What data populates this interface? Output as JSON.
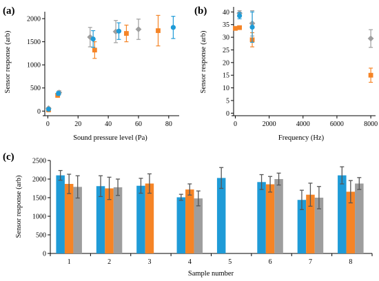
{
  "chart_data": [
    {
      "panel": "(a)",
      "type": "scatter",
      "xlabel": "Sound pressure level (Pa)",
      "ylabel": "Sensor response (arb)",
      "xlim": [
        -2,
        86
      ],
      "ylim": [
        -100,
        2150
      ],
      "xticks": [
        0,
        20,
        40,
        60,
        80
      ],
      "yticks": [
        0,
        500,
        1000,
        1500,
        2000
      ],
      "colors": [
        "#1f9bd7",
        "#f58426",
        "#9e9e9e"
      ],
      "markers": [
        "circle",
        "square",
        "diamond"
      ],
      "series": [
        {
          "points": [
            {
              "x": 0.5,
              "y": 40,
              "err": 20
            },
            {
              "x": 7,
              "y": 380,
              "err": 40
            },
            {
              "x": 30,
              "y": 1560,
              "err": 180
            },
            {
              "x": 47,
              "y": 1730,
              "err": 180
            },
            {
              "x": 83,
              "y": 1810,
              "err": 240
            }
          ]
        },
        {
          "points": [
            {
              "x": 0.5,
              "y": 25,
              "err": 15
            },
            {
              "x": 6.5,
              "y": 340,
              "err": 40
            },
            {
              "x": 31,
              "y": 1320,
              "err": 180
            },
            {
              "x": 52,
              "y": 1680,
              "err": 180
            },
            {
              "x": 73,
              "y": 1740,
              "err": 330
            }
          ]
        },
        {
          "points": [
            {
              "x": 0.5,
              "y": 60,
              "err": 20
            },
            {
              "x": 7.5,
              "y": 400,
              "err": 40
            },
            {
              "x": 28,
              "y": 1600,
              "err": 210
            },
            {
              "x": 45,
              "y": 1720,
              "err": 240
            },
            {
              "x": 60,
              "y": 1770,
              "err": 220
            }
          ]
        }
      ]
    },
    {
      "panel": "(b)",
      "type": "scatter",
      "xlabel": "Frequency (Hz)",
      "ylabel": "Sensor response (arb)",
      "xlim": [
        -100,
        8200
      ],
      "ylim": [
        -1,
        42
      ],
      "xticks": [
        0,
        2000,
        4000,
        6000,
        8000
      ],
      "yticks": [
        0,
        5,
        10,
        15,
        20,
        25,
        30,
        35,
        40
      ],
      "colors": [
        "#1f9bd7",
        "#f58426",
        "#9e9e9e"
      ],
      "markers": [
        "circle",
        "square",
        "diamond"
      ],
      "series": [
        {
          "points": [
            {
              "x": 250,
              "y": 38.5,
              "err": 1.2
            },
            {
              "x": 1000,
              "y": 34,
              "err": 6
            }
          ]
        },
        {
          "points": [
            {
              "x": 0,
              "y": 33.5,
              "err": 0.6
            },
            {
              "x": 250,
              "y": 33.8,
              "err": 0.6
            },
            {
              "x": 1000,
              "y": 29,
              "err": 2.8
            },
            {
              "x": 8000,
              "y": 15,
              "err": 2.8
            }
          ]
        },
        {
          "points": [
            {
              "x": 250,
              "y": 39.5,
              "err": 1
            },
            {
              "x": 1000,
              "y": 35.5,
              "err": 5
            },
            {
              "x": 8000,
              "y": 29.5,
              "err": 3.5
            }
          ]
        }
      ]
    },
    {
      "panel": "(c)",
      "type": "bar",
      "xlabel": "Sample number",
      "ylabel": "Sensor response (arb)",
      "ylim": [
        0,
        2500
      ],
      "yticks": [
        0,
        500,
        1000,
        1500,
        2000,
        2500
      ],
      "categories": [
        "1",
        "2",
        "3",
        "4",
        "5",
        "6",
        "7",
        "8"
      ],
      "colors": [
        "#1f9bd7",
        "#f58426",
        "#9e9e9e"
      ],
      "series": [
        {
          "values": [
            2100,
            1810,
            1820,
            1510,
            2030,
            1920,
            1440,
            2100
          ],
          "errors": [
            130,
            280,
            200,
            80,
            280,
            200,
            260,
            230
          ]
        },
        {
          "values": [
            1870,
            1750,
            1880,
            1720,
            null,
            1860,
            1580,
            1660
          ],
          "errors": [
            260,
            300,
            260,
            150,
            null,
            210,
            310,
            300
          ]
        },
        {
          "values": [
            1790,
            1780,
            null,
            1480,
            null,
            2000,
            1500,
            1880
          ],
          "errors": [
            300,
            220,
            null,
            200,
            null,
            160,
            300,
            160
          ]
        }
      ]
    }
  ]
}
